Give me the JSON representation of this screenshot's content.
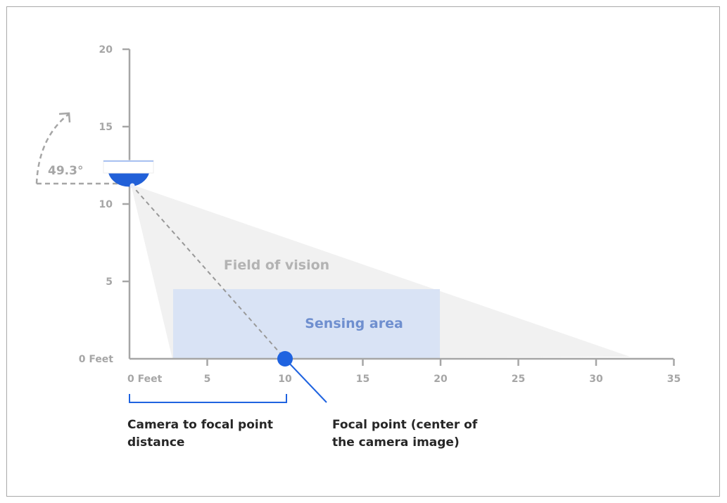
{
  "y_ticks": [
    "0 Feet",
    "5",
    "10",
    "15",
    "20"
  ],
  "x_ticks": [
    "0 Feet",
    "5",
    "10",
    "15",
    "20",
    "25",
    "30",
    "35"
  ],
  "angle_label": "49.3°",
  "field_label": "Field of vision",
  "sensing_label": "Sensing area",
  "distance_label": [
    "Camera  to focal point",
    "distance"
  ],
  "focal_label": [
    "Focal point (center of",
    "the camera image)"
  ],
  "colors": {
    "accent": "#1f63e0",
    "axis": "#a6a6a6",
    "sensing": "#d9e3f5",
    "sensing_text": "#6f8fcf",
    "fov": "#ededed"
  }
}
